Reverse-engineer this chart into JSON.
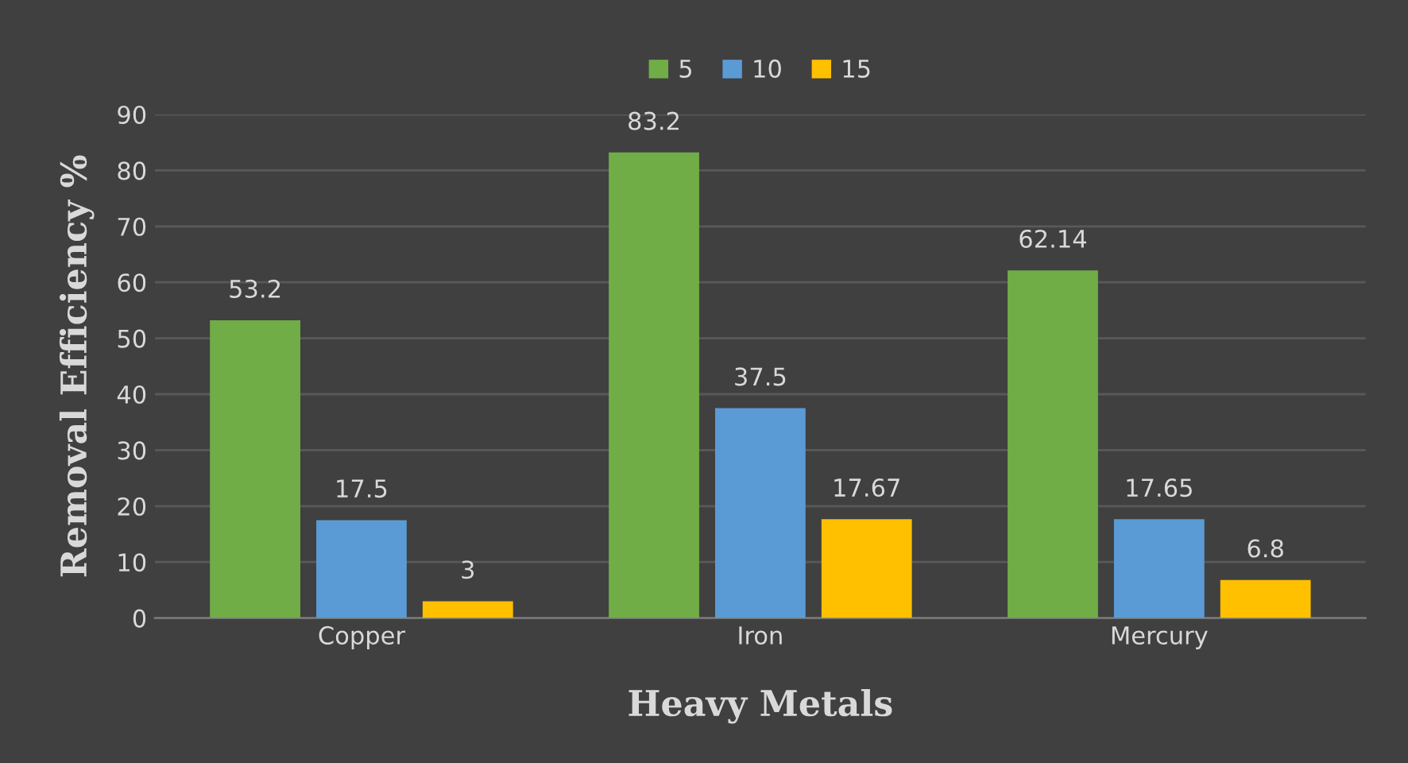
{
  "chart_data": {
    "type": "bar",
    "xlabel": "Heavy Metals",
    "ylabel": "Removal Efficiency %",
    "categories": [
      "Copper",
      "Iron",
      "Mercury"
    ],
    "series": [
      {
        "name": "5",
        "color": "#70ad47",
        "values": [
          53.2,
          83.2,
          62.14
        ]
      },
      {
        "name": "10",
        "color": "#5b9bd5",
        "values": [
          17.5,
          37.5,
          17.65
        ]
      },
      {
        "name": "15",
        "color": "#ffc000",
        "values": [
          3,
          17.67,
          6.8
        ]
      }
    ],
    "ylim": [
      0,
      90
    ],
    "yticks": [
      0,
      10,
      20,
      30,
      40,
      50,
      60,
      70,
      80,
      90
    ],
    "grid": "y",
    "legend": "top",
    "data_labels": true
  }
}
